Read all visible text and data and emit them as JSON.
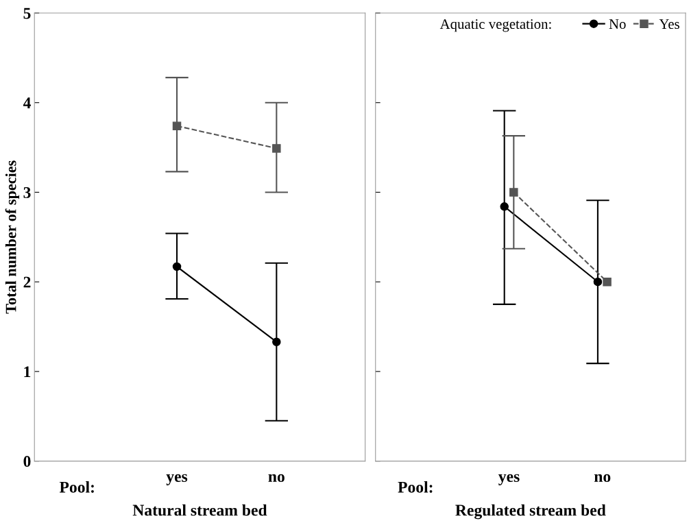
{
  "chart_data": [
    {
      "type": "line",
      "xlabel": "Natural stream bed",
      "ylabel": "Total number of species",
      "categories": [
        "yes",
        "no"
      ],
      "ylim": [
        0,
        5
      ],
      "yticks": [
        0,
        1,
        2,
        3,
        4,
        5
      ],
      "annotations": [
        "Pool:"
      ],
      "legend": false,
      "series": [
        {
          "color": "#000000",
          "marker": "circle",
          "line_style": "solid",
          "values": [
            2.17,
            1.33
          ],
          "errors": [
            [
              1.81,
              2.54
            ],
            [
              0.45,
              2.21
            ]
          ]
        },
        {
          "color": "#555555",
          "marker": "square",
          "line_style": "dashed",
          "values": [
            3.74,
            3.49
          ],
          "errors": [
            [
              3.23,
              4.28
            ],
            [
              3.0,
              4.0
            ]
          ]
        }
      ]
    },
    {
      "type": "line",
      "xlabel": "Regulated stream bed",
      "categories": [
        "yes",
        "no"
      ],
      "ylim": [
        0,
        5
      ],
      "yticks": [
        0,
        1,
        2,
        3,
        4,
        5
      ],
      "tick_labels": "x",
      "annotations": [
        "Pool:"
      ],
      "legend": "top right",
      "legend_title": "Aquatic vegetation:",
      "series": [
        {
          "name": "No",
          "color": "#000000",
          "marker": "circle",
          "line_style": "solid",
          "values": [
            2.84,
            2.0
          ],
          "errors": [
            [
              1.75,
              3.91
            ],
            [
              1.09,
              2.91
            ]
          ]
        },
        {
          "name": "Yes",
          "color": "#555555",
          "marker": "square",
          "line_style": "dashed",
          "values": [
            3.0,
            2.0
          ],
          "errors": [
            [
              2.37,
              3.63
            ],
            null
          ]
        }
      ]
    }
  ]
}
